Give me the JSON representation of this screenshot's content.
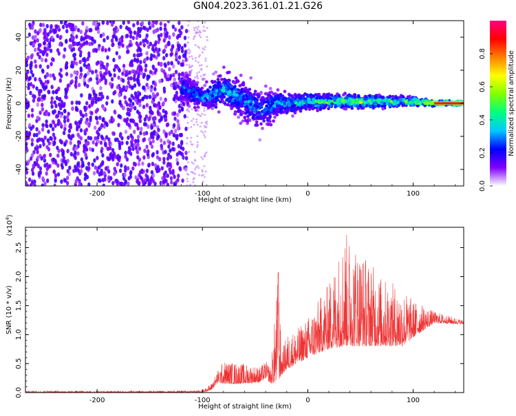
{
  "title": "GN04.2023.361.01.21.G26",
  "chart_data": [
    {
      "type": "heatmap",
      "xlabel": "Height of straight line (km)",
      "ylabel": "Frequency (Hz)",
      "xlim": [
        -268,
        148
      ],
      "ylim": [
        -50,
        50
      ],
      "xticks": [
        -200,
        -100,
        0,
        100
      ],
      "yticks": [
        -40,
        -20,
        0,
        20,
        40
      ],
      "colorbar": {
        "label": "Normalized spectral amplitude",
        "range": [
          0,
          1
        ],
        "ticks": [
          "0.0",
          "0.2",
          "0.4",
          "0.6",
          "0.8"
        ],
        "colors": [
          "#ffffff",
          "#8000ff",
          "#0000ff",
          "#00c8ff",
          "#00ff80",
          "#80ff00",
          "#ffff00",
          "#ff8000",
          "#ff0000",
          "#ff0080"
        ]
      },
      "noise_region": {
        "x_range": [
          -268,
          -115
        ],
        "amplitude_range": [
          0.0,
          0.25
        ]
      },
      "signal_band": [
        {
          "x": -120,
          "freq": 10,
          "spread": 8,
          "amplitude": 0.3
        },
        {
          "x": -100,
          "freq": 3,
          "spread": 6,
          "amplitude": 0.35
        },
        {
          "x": -80,
          "freq": 8,
          "spread": 9,
          "amplitude": 0.4
        },
        {
          "x": -60,
          "freq": 2,
          "spread": 10,
          "amplitude": 0.35
        },
        {
          "x": -45,
          "freq": -5,
          "spread": 12,
          "amplitude": 0.3
        },
        {
          "x": -30,
          "freq": 0,
          "spread": 6,
          "amplitude": 0.4
        },
        {
          "x": -10,
          "freq": 0,
          "spread": 4,
          "amplitude": 0.45
        },
        {
          "x": 0,
          "freq": 1,
          "spread": 4,
          "amplitude": 0.5
        },
        {
          "x": 20,
          "freq": 1,
          "spread": 3,
          "amplitude": 0.55
        },
        {
          "x": 40,
          "freq": 1,
          "spread": 3,
          "amplitude": 0.6
        },
        {
          "x": 60,
          "freq": 1,
          "spread": 3,
          "amplitude": 0.6
        },
        {
          "x": 80,
          "freq": 1,
          "spread": 2.5,
          "amplitude": 0.55
        },
        {
          "x": 100,
          "freq": 1,
          "spread": 2,
          "amplitude": 0.6
        },
        {
          "x": 120,
          "freq": 0,
          "spread": 1,
          "amplitude": 0.85
        },
        {
          "x": 148,
          "freq": 0,
          "spread": 1,
          "amplitude": 0.9
        }
      ]
    },
    {
      "type": "line",
      "xlabel": "Height of straight line (km)",
      "ylabel": "SNR (10 * v/v)",
      "yscale_label": "(x10",
      "yscale_exp": "4",
      "yscale_close": ")",
      "xlim": [
        -268,
        148
      ],
      "ylim": [
        0,
        28500
      ],
      "xticks": [
        -200,
        -100,
        0,
        100
      ],
      "yticks": [
        "0.0",
        "0.5",
        "1.0",
        "1.5",
        "2.0",
        "2.5"
      ],
      "ytick_values": [
        0,
        5000,
        10000,
        15000,
        20000,
        25000
      ],
      "color": "#ee3333",
      "envelope": [
        {
          "x": -268,
          "base": 0,
          "peak": 300
        },
        {
          "x": -150,
          "base": 0,
          "peak": 300
        },
        {
          "x": -100,
          "base": 50,
          "peak": 400
        },
        {
          "x": -92,
          "base": 400,
          "peak": 1500
        },
        {
          "x": -85,
          "base": 1800,
          "peak": 4000
        },
        {
          "x": -80,
          "base": 1500,
          "peak": 5500
        },
        {
          "x": -60,
          "base": 1500,
          "peak": 5000
        },
        {
          "x": -45,
          "base": 1800,
          "peak": 4500
        },
        {
          "x": -40,
          "base": 2500,
          "peak": 5500
        },
        {
          "x": -35,
          "base": 1500,
          "peak": 4500
        },
        {
          "x": -28,
          "base": 2000,
          "peak": 21000
        },
        {
          "x": -25,
          "base": 3000,
          "peak": 7000
        },
        {
          "x": -20,
          "base": 4000,
          "peak": 10000
        },
        {
          "x": -10,
          "base": 5000,
          "peak": 11000
        },
        {
          "x": 0,
          "base": 6000,
          "peak": 13000
        },
        {
          "x": 20,
          "base": 7500,
          "peak": 19000
        },
        {
          "x": 35,
          "base": 8000,
          "peak": 28000
        },
        {
          "x": 50,
          "base": 8000,
          "peak": 25000
        },
        {
          "x": 70,
          "base": 8000,
          "peak": 20000
        },
        {
          "x": 90,
          "base": 8000,
          "peak": 18000
        },
        {
          "x": 100,
          "base": 9500,
          "peak": 16000
        },
        {
          "x": 120,
          "base": 12000,
          "peak": 14000
        },
        {
          "x": 148,
          "base": 11800,
          "peak": 12500
        }
      ]
    }
  ]
}
